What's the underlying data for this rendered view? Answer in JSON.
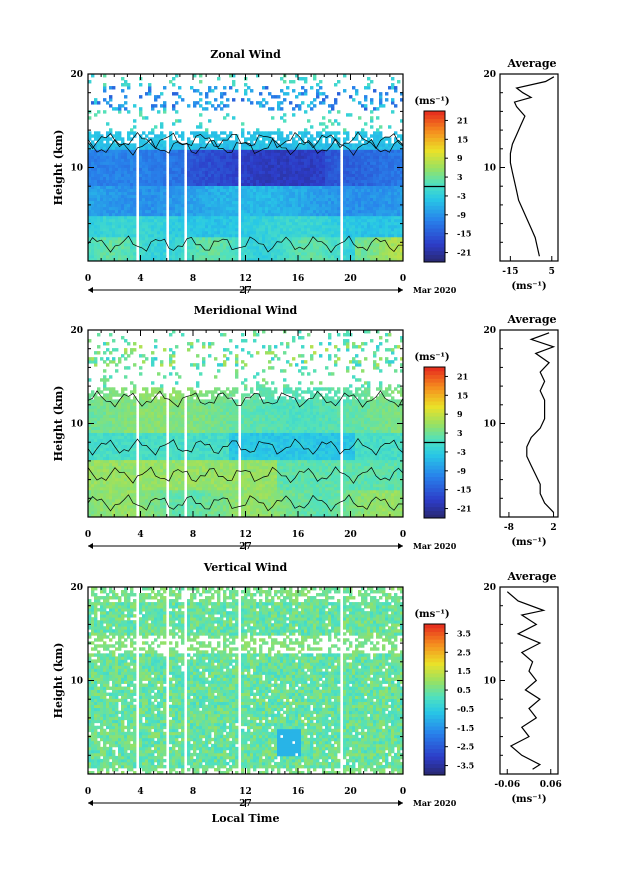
{
  "chart_data": [
    {
      "type": "heatmap",
      "title": "Zonal Wind",
      "ylabel": "Height (km)",
      "ylim": [
        0,
        20
      ],
      "yticks": [
        "10",
        "20"
      ],
      "xticks": [
        "0",
        "4",
        "8",
        "12",
        "16",
        "20",
        "0"
      ],
      "date_label": "27",
      "month_label": "Mar 2020",
      "unit_label": "(ms⁻¹)",
      "colorbar": {
        "ticks": [
          "21",
          "15",
          "9",
          "3",
          "-3",
          "-9",
          "-15",
          "-21"
        ],
        "range": [
          -24,
          24
        ]
      },
      "profile": {
        "title": "Average",
        "xticks": [
          "-15",
          "5"
        ],
        "xlim": [
          -20,
          8
        ],
        "xlabel": "(ms⁻¹)",
        "yticks": [
          "10",
          "20"
        ],
        "points": [
          [
            -1,
            0.5
          ],
          [
            -2,
            1.5
          ],
          [
            -3,
            2.5
          ],
          [
            -5,
            3.5
          ],
          [
            -7,
            4.5
          ],
          [
            -9,
            5.5
          ],
          [
            -11,
            6.5
          ],
          [
            -12,
            7.5
          ],
          [
            -13,
            8.5
          ],
          [
            -14,
            9.5
          ],
          [
            -15,
            10.5
          ],
          [
            -15,
            11.5
          ],
          [
            -14,
            12.5
          ],
          [
            -12,
            13.5
          ],
          [
            -10,
            14.5
          ],
          [
            -8,
            15.5
          ],
          [
            -12,
            16.5
          ],
          [
            -13,
            17
          ],
          [
            -5,
            17.5
          ],
          [
            -9,
            18
          ],
          [
            -12,
            18.5
          ],
          [
            2,
            19.2
          ],
          [
            6,
            19.7
          ]
        ]
      },
      "field": "zonal"
    },
    {
      "type": "heatmap",
      "title": "Meridional Wind",
      "ylabel": "Height (km)",
      "ylim": [
        0,
        20
      ],
      "yticks": [
        "10",
        "20"
      ],
      "xticks": [
        "0",
        "4",
        "8",
        "12",
        "16",
        "20",
        "0"
      ],
      "date_label": "27",
      "month_label": "Mar 2020",
      "unit_label": "(ms⁻¹)",
      "colorbar": {
        "ticks": [
          "21",
          "15",
          "9",
          "3",
          "-3",
          "-9",
          "-15",
          "-21"
        ],
        "range": [
          -24,
          24
        ]
      },
      "profile": {
        "title": "Average",
        "xticks": [
          "-8",
          "2"
        ],
        "xlim": [
          -10,
          3
        ],
        "xlabel": "(ms⁻¹)",
        "yticks": [
          "10",
          "20"
        ],
        "points": [
          [
            2,
            0.5
          ],
          [
            0,
            1.5
          ],
          [
            -1,
            2.5
          ],
          [
            -1,
            3.5
          ],
          [
            -2,
            4.5
          ],
          [
            -3,
            5.5
          ],
          [
            -4,
            6.5
          ],
          [
            -4,
            7.5
          ],
          [
            -3,
            8.5
          ],
          [
            -1,
            9.5
          ],
          [
            0,
            10.5
          ],
          [
            0,
            11.5
          ],
          [
            0,
            12.5
          ],
          [
            -1,
            13.5
          ],
          [
            0,
            14.5
          ],
          [
            -1,
            15.5
          ],
          [
            1,
            16.5
          ],
          [
            -2,
            17.5
          ],
          [
            2,
            18.2
          ],
          [
            -3,
            19
          ],
          [
            1,
            19.7
          ]
        ]
      },
      "field": "meridional"
    },
    {
      "type": "heatmap",
      "title": "Vertical Wind",
      "ylabel": "Height (km)",
      "xlabel": "Local Time",
      "ylim": [
        0,
        20
      ],
      "yticks": [
        "10",
        "20"
      ],
      "xticks": [
        "0",
        "4",
        "8",
        "12",
        "16",
        "20",
        "0"
      ],
      "date_label": "27",
      "month_label": "Mar 2020",
      "unit_label": "(ms⁻¹)",
      "colorbar": {
        "ticks": [
          "3.5",
          "2.5",
          "1.5",
          "0.5",
          "-0.5",
          "-1.5",
          "-2.5",
          "-3.5"
        ],
        "range": [
          -4,
          4
        ]
      },
      "profile": {
        "title": "Average",
        "xticks": [
          "-0.06",
          "0.06"
        ],
        "xlim": [
          -0.08,
          0.08
        ],
        "xlabel": "(ms⁻¹)",
        "yticks": [
          "10",
          "20"
        ],
        "points": [
          [
            0.01,
            0.5
          ],
          [
            0.03,
            1
          ],
          [
            -0.02,
            2
          ],
          [
            -0.05,
            3
          ],
          [
            0,
            4
          ],
          [
            -0.02,
            5
          ],
          [
            0.02,
            6
          ],
          [
            0,
            7
          ],
          [
            0.03,
            8
          ],
          [
            -0.01,
            9
          ],
          [
            0.02,
            10
          ],
          [
            0,
            11
          ],
          [
            0.01,
            12
          ],
          [
            -0.02,
            13
          ],
          [
            0.03,
            14
          ],
          [
            -0.03,
            15
          ],
          [
            0.02,
            16
          ],
          [
            -0.02,
            17
          ],
          [
            0.04,
            17.5
          ],
          [
            -0.03,
            18.5
          ],
          [
            -0.06,
            19.5
          ]
        ]
      },
      "field": "vertical"
    }
  ]
}
